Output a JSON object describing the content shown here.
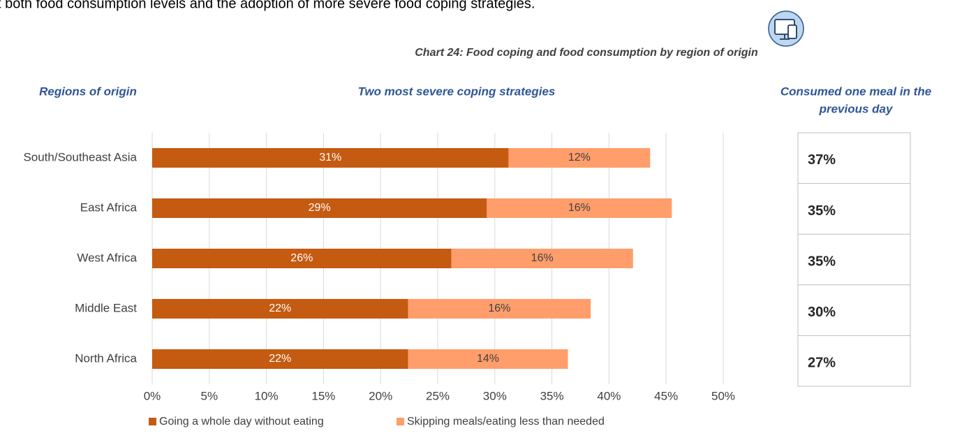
{
  "intro_text": "t both food consumption levels and the adoption of more severe food coping strategies.",
  "chart_data": {
    "type": "stacked-barh",
    "title": "Chart 24: Food coping and food consumption by region of origin",
    "category_heading": "Regions of origin",
    "bars_heading": "Two most severe coping strategies",
    "categories": [
      "South/Southeast Asia",
      "East Africa",
      "West Africa",
      "Middle East",
      "North Africa"
    ],
    "series": [
      {
        "name": "Going a whole day without eating",
        "color": "#c55a11",
        "label_color": "#ffffff",
        "values": [
          31.2,
          29.3,
          26.2,
          22.4,
          22.4
        ],
        "value_labels": [
          "31%",
          "29%",
          "26%",
          "22%",
          "22%"
        ]
      },
      {
        "name": "Skipping meals/eating less than needed",
        "color": "#ff9e6b",
        "label_color": "#404040",
        "values": [
          12.4,
          16.2,
          15.9,
          16.0,
          14.0
        ],
        "value_labels": [
          "12%",
          "16%",
          "16%",
          "16%",
          "14%"
        ]
      }
    ],
    "xlim": [
      0,
      50
    ],
    "xticks": [
      {
        "value": 0,
        "label": "0%"
      },
      {
        "value": 5,
        "label": "5%"
      },
      {
        "value": 10,
        "label": "10%"
      },
      {
        "value": 15,
        "label": "15%"
      },
      {
        "value": 20,
        "label": "20%"
      },
      {
        "value": 25,
        "label": "25%"
      },
      {
        "value": 30,
        "label": "30%"
      },
      {
        "value": 35,
        "label": "35%"
      },
      {
        "value": 40,
        "label": "40%"
      },
      {
        "value": 45,
        "label": "45%"
      },
      {
        "value": 50,
        "label": "50%"
      }
    ],
    "grid": true,
    "legend": "bottom",
    "side_table": {
      "heading": [
        "Consumed one meal in the",
        "previous day"
      ],
      "cells": [
        "37%",
        "35%",
        "35%",
        "30%",
        "27%"
      ]
    }
  }
}
